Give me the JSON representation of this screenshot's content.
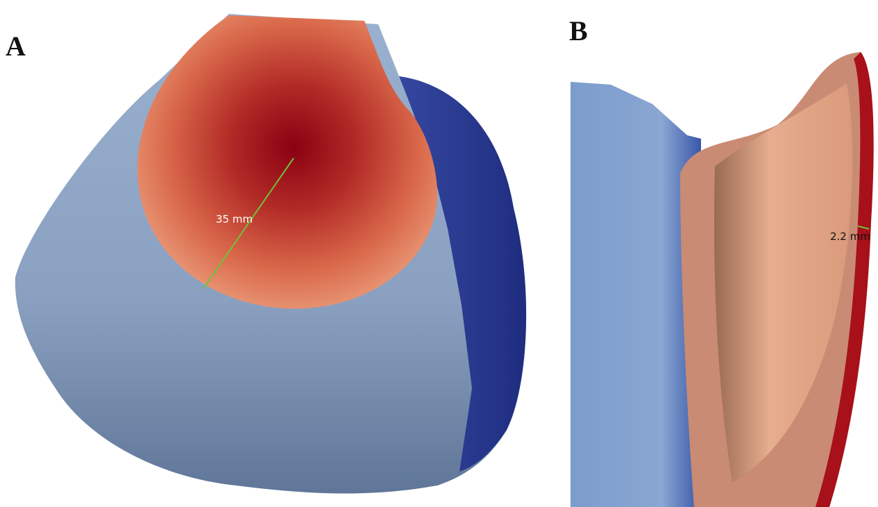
{
  "panels": [
    {
      "label": "A",
      "measurement": "35 mm"
    },
    {
      "label": "B",
      "measurement": "2.2 mm"
    }
  ]
}
